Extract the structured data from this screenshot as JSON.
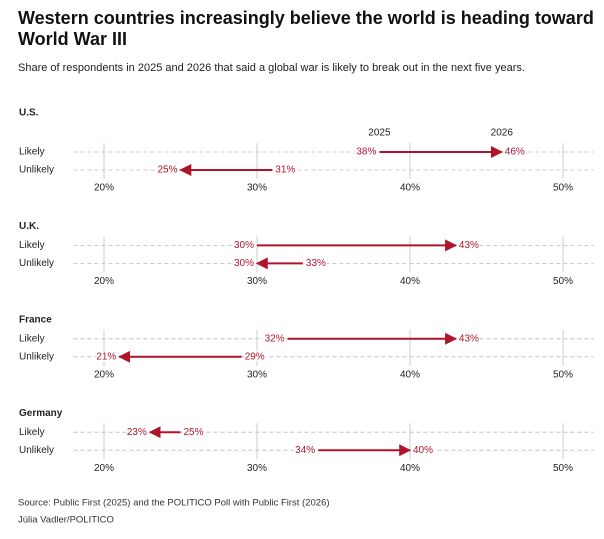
{
  "title": "Western countries increasingly believe the world is heading toward World War III",
  "subtitle": "Share of respondents in 2025 and 2026 that said a global war is likely to break out in the next five years.",
  "source": "Source: Public First (2025) and the POLITICO Poll with Public First (2026)",
  "credit": "Júlia Vadler/POLITICO",
  "chart_data": [
    {
      "type": "arrow",
      "title": "U.S.",
      "categories": [
        "Likely",
        "Unlikely"
      ],
      "color": "#b0142a",
      "series": [
        {
          "name": "2025",
          "values": [
            38,
            31
          ],
          "value_labels": [
            "38%",
            "31%"
          ]
        },
        {
          "name": "2026",
          "values": [
            46,
            25
          ],
          "value_labels": [
            "46%",
            "25%"
          ]
        }
      ],
      "xlim": [
        18,
        52
      ],
      "xticks": [
        {
          "value": 20,
          "label": "20%"
        },
        {
          "value": 30,
          "label": "30%"
        },
        {
          "value": 40,
          "label": "40%"
        },
        {
          "value": 50,
          "label": "50%"
        }
      ],
      "grid": true
    },
    {
      "type": "arrow",
      "title": "U.K.",
      "categories": [
        "Likely",
        "Unlikely"
      ],
      "color": "#b0142a",
      "series": [
        {
          "values": [
            30,
            33
          ],
          "value_labels": [
            "30%",
            "33%"
          ]
        },
        {
          "values": [
            43,
            30
          ],
          "value_labels": [
            "43%",
            "30%"
          ]
        }
      ],
      "xlim": [
        18,
        52
      ],
      "xticks": [
        {
          "value": 20,
          "label": "20%"
        },
        {
          "value": 30,
          "label": "30%"
        },
        {
          "value": 40,
          "label": "40%"
        },
        {
          "value": 50,
          "label": "50%"
        }
      ],
      "grid": true
    },
    {
      "type": "arrow",
      "title": "France",
      "categories": [
        "Likely",
        "Unlikely"
      ],
      "color": "#b0142a",
      "series": [
        {
          "values": [
            32,
            29
          ],
          "value_labels": [
            "32%",
            "29%"
          ]
        },
        {
          "values": [
            43,
            21
          ],
          "value_labels": [
            "43%",
            "21%"
          ]
        }
      ],
      "xlim": [
        18,
        52
      ],
      "xticks": [
        {
          "value": 20,
          "label": "20%"
        },
        {
          "value": 30,
          "label": "30%"
        },
        {
          "value": 40,
          "label": "40%"
        },
        {
          "value": 50,
          "label": "50%"
        }
      ],
      "grid": true
    },
    {
      "type": "arrow",
      "title": "Germany",
      "categories": [
        "Likely",
        "Unlikely"
      ],
      "color": "#b0142a",
      "series": [
        {
          "values": [
            25,
            34
          ],
          "value_labels": [
            "25%",
            "34%"
          ]
        },
        {
          "values": [
            23,
            40
          ],
          "value_labels": [
            "23%",
            "40%"
          ]
        }
      ],
      "xlim": [
        18,
        52
      ],
      "xticks": [
        {
          "value": 20,
          "label": "20%"
        },
        {
          "value": 30,
          "label": "30%"
        },
        {
          "value": 40,
          "label": "40%"
        },
        {
          "value": 50,
          "label": "50%"
        }
      ],
      "grid": true
    }
  ]
}
